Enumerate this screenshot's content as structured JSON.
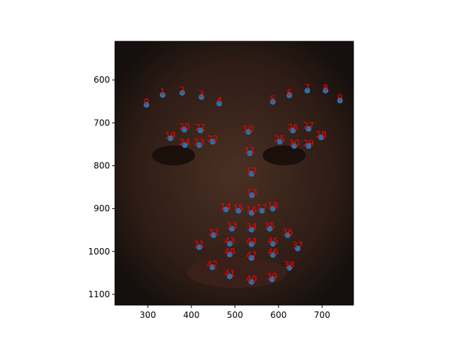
{
  "chart_data": {
    "type": "scatter",
    "x": [
      297,
      334,
      379,
      423,
      464,
      587,
      625,
      666,
      708,
      741,
      531,
      534,
      538,
      539,
      479,
      508,
      538,
      562,
      587,
      352,
      384,
      421,
      449,
      418,
      385,
      603,
      633,
      669,
      698,
      669,
      636,
      418,
      451,
      493,
      538,
      580,
      621,
      644,
      625,
      585,
      538,
      488,
      448,
      488,
      538,
      587,
      587,
      538,
      488
    ],
    "values": [
      658,
      635,
      630,
      640,
      655,
      651,
      636,
      625,
      625,
      648,
      721,
      771,
      819,
      869,
      902,
      905,
      910,
      905,
      900,
      736,
      716,
      718,
      744,
      752,
      752,
      744,
      718,
      714,
      734,
      754,
      754,
      990,
      962,
      947,
      949,
      947,
      962,
      993,
      1038,
      1065,
      1071,
      1058,
      1037,
      982,
      983,
      982,
      1008,
      1015,
      1007
    ],
    "labels": [
      "0",
      "1",
      "2",
      "3",
      "4",
      "5",
      "6",
      "7",
      "8",
      "9",
      "10",
      "11",
      "12",
      "13",
      "14",
      "15",
      "16",
      "17",
      "18",
      "19",
      "20",
      "21",
      "22",
      "23",
      "24",
      "25",
      "26",
      "27",
      "28",
      "29",
      "30",
      "31",
      "32",
      "33",
      "34",
      "35",
      "36",
      "37",
      "38",
      "39",
      "40",
      "41",
      "42",
      "43",
      "44",
      "45",
      "46",
      "47",
      "48"
    ],
    "color": "#1f77b4",
    "label_color": "#ff0000",
    "xlim": [
      224.6,
      772
    ],
    "ylim": [
      1125,
      510
    ],
    "xticks": [
      300,
      400,
      500,
      600,
      700
    ],
    "yticks": [
      600,
      700,
      800,
      900,
      1000,
      1100
    ]
  }
}
